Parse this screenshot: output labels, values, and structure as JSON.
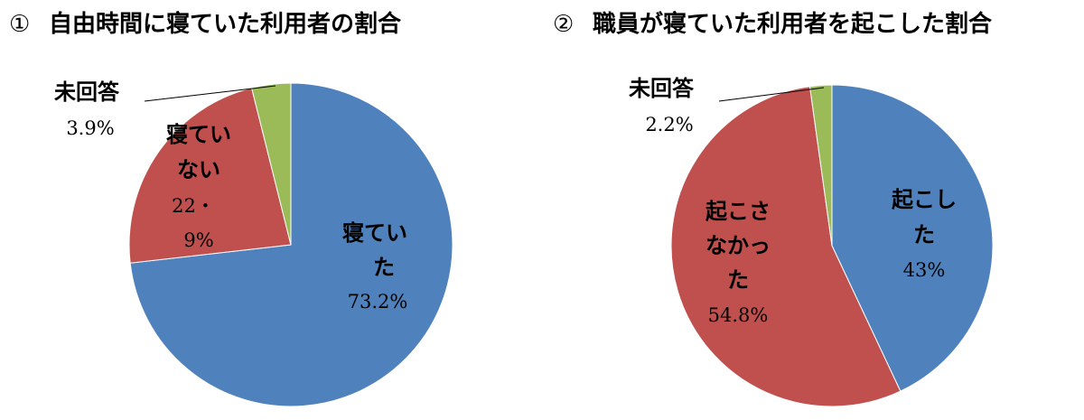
{
  "headings": [
    {
      "num": "①",
      "text": "自由時間に寝ていた利用者の割合"
    },
    {
      "num": "②",
      "text": "職員が寝ていた利用者を起こした割合"
    }
  ],
  "chart_data": [
    {
      "type": "pie",
      "title": "自由時間に寝ていた利用者の割合",
      "slices": [
        {
          "label_lines": [
            "寝てい",
            "た"
          ],
          "value_text": "73.2%",
          "value": 73.2,
          "color": "#4f81bd"
        },
        {
          "label_lines": [
            "寝てい",
            "ない"
          ],
          "value_text_lines": [
            "22・",
            "9%"
          ],
          "value": 22.9,
          "color": "#c0504d"
        },
        {
          "label_lines": [
            "未回答"
          ],
          "value_text": "3.9%",
          "value": 3.9,
          "color": "#9bbb59"
        }
      ]
    },
    {
      "type": "pie",
      "title": "職員が寝ていた利用者を起こした割合",
      "slices": [
        {
          "label_lines": [
            "起こし",
            "た"
          ],
          "value_text": "43%",
          "value": 43,
          "color": "#4f81bd"
        },
        {
          "label_lines": [
            "起こさ",
            "なかっ",
            "た"
          ],
          "value_text": "54.8%",
          "value": 54.8,
          "color": "#c0504d"
        },
        {
          "label_lines": [
            "未回答"
          ],
          "value_text": "2.2%",
          "value": 2.2,
          "color": "#9bbb59"
        }
      ]
    }
  ]
}
